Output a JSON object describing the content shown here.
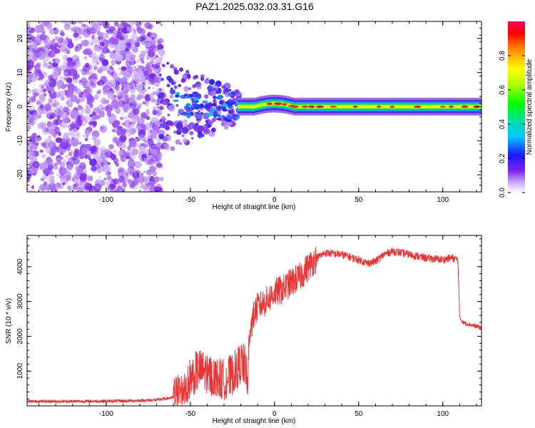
{
  "title": "PAZ1.2025.032.03.31.G16",
  "chart_data": [
    {
      "type": "heatmap",
      "xlabel": "Height of straight line (km)",
      "ylabel": "Frequency (Hz)",
      "xlim": [
        -147,
        123
      ],
      "ylim": [
        -25,
        25
      ],
      "xticks": [
        -100,
        -50,
        0,
        50,
        100
      ],
      "yticks": [
        -20,
        -10,
        0,
        10,
        20
      ],
      "grid": false,
      "colorbar": {
        "label": "Normalized spectral amplitude",
        "range": [
          0,
          1
        ],
        "ticks": [
          "0.0",
          "0.2",
          "0.4",
          "0.6",
          "0.8"
        ]
      }
    },
    {
      "type": "line",
      "xlabel": "Height of straight line (km)",
      "ylabel": "SNR (10 * v/v)",
      "xlim": [
        -147,
        123
      ],
      "ylim": [
        0,
        4900
      ],
      "xticks": [
        -100,
        -50,
        0,
        50,
        100
      ],
      "yticks": [
        1000,
        2000,
        3000,
        4000
      ],
      "grid": false,
      "color": "#ee3333",
      "profile_x": [
        -147,
        -120,
        -90,
        -70,
        -60,
        -55,
        -50,
        -45,
        -40,
        -35,
        -30,
        -25,
        -20,
        -17,
        -16,
        -15,
        -12,
        -10,
        -5,
        0,
        5,
        10,
        15,
        20,
        25,
        30,
        40,
        50,
        55,
        60,
        65,
        70,
        80,
        90,
        100,
        105,
        109,
        110,
        112,
        115,
        123
      ],
      "profile_y": [
        130,
        130,
        140,
        170,
        240,
        450,
        800,
        1050,
        950,
        800,
        750,
        900,
        1250,
        1150,
        300,
        2100,
        2650,
        2850,
        3000,
        3250,
        3350,
        3550,
        3700,
        4000,
        4250,
        4400,
        4350,
        4200,
        4100,
        4150,
        4350,
        4450,
        4350,
        4250,
        4200,
        4250,
        4200,
        2550,
        2400,
        2350,
        2250
      ]
    }
  ]
}
